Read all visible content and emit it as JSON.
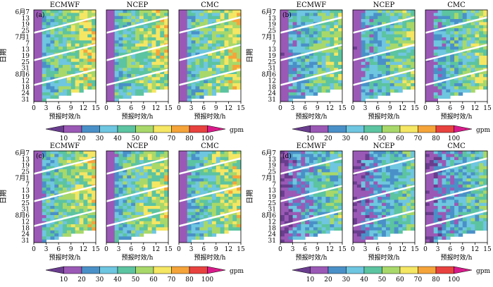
{
  "chart_data": {
    "type": "heatmap",
    "panels": [
      {
        "tag": "(a)"
      },
      {
        "tag": "(b)"
      },
      {
        "tag": "(c)"
      },
      {
        "tag": "(d)"
      }
    ],
    "models": [
      "ECMWF",
      "NCEP",
      "CMC"
    ],
    "ylabel": "日期",
    "xlabel": "预报时效/h",
    "xticks": [
      0,
      3,
      6,
      9,
      12,
      15
    ],
    "xlim": [
      0,
      15
    ],
    "yticks": [
      "6月7",
      "13",
      "19",
      "25",
      "7月1",
      "7",
      "13",
      "19",
      "25",
      "31",
      "8月6",
      "12",
      "18",
      "24",
      "31"
    ],
    "colorbar": {
      "unit": "gpm",
      "ticks": [
        10,
        20,
        30,
        40,
        50,
        60,
        70,
        80,
        100
      ],
      "colors": [
        "#6a3d8f",
        "#9b59b6",
        "#4a90c8",
        "#6ec6e0",
        "#5cc4a0",
        "#a8d86a",
        "#f5e663",
        "#f5a43a",
        "#e8423f",
        "#d81b8a"
      ]
    }
  }
}
